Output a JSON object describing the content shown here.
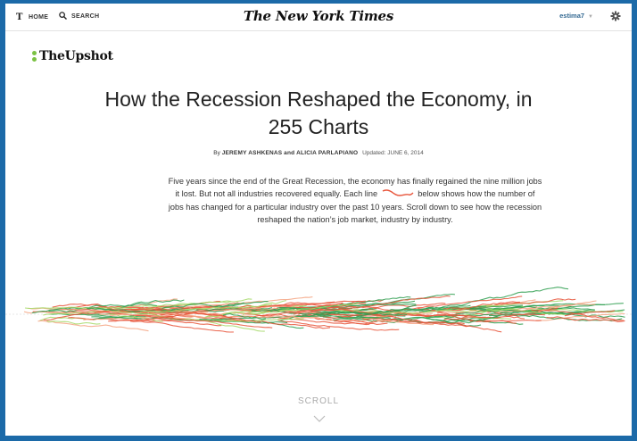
{
  "header": {
    "home_label": "HOME",
    "search_label": "SEARCH",
    "logo_text": "The New York Times",
    "username": "estima7",
    "icons": {
      "home": "nyt-t-icon",
      "search": "search-icon",
      "settings": "gear-icon",
      "caret": "chevron-down-icon"
    }
  },
  "section": {
    "brand": "TheUpshot"
  },
  "article": {
    "title": "How the Recession Reshaped the Economy, in 255 Charts",
    "byline_prefix": "By",
    "author1": "JEREMY ASHKENAS",
    "byline_and": "and",
    "author2": "ALICIA PARLAPIANO",
    "updated": "Updated: JUNE 6, 2014",
    "intro_before": "Five years since the end of the Great Recession, the economy has finally regained the nine million jobs it lost. But not all industries recovered equally. Each line",
    "intro_after": "below shows how the number of jobs has changed for a particular industry over the past 10 years. Scroll down to see how the recession reshaped the nation’s job market, industry by industry."
  },
  "scroll_label": "SCROLL",
  "colors": {
    "gained": "#2e9e4f",
    "gained_light": "#a6d96a",
    "lost": "#e8553b",
    "lost_light": "#f4a582",
    "brand_green": "#7ac143"
  }
}
